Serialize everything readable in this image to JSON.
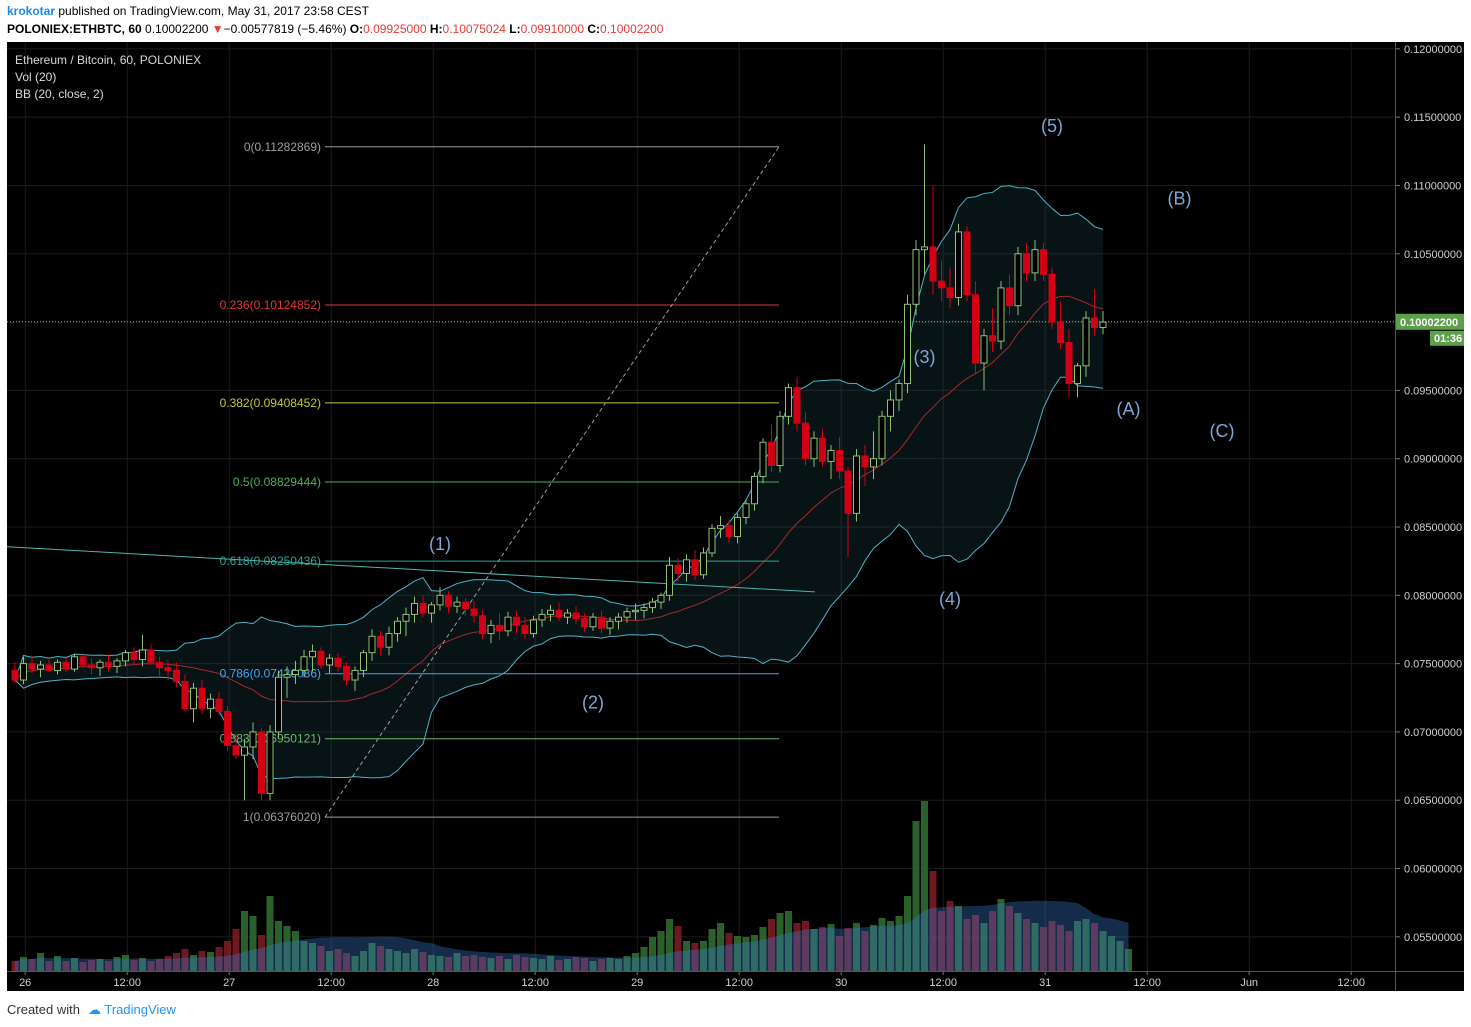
{
  "header": {
    "author": "krokotar",
    "published_text": "published on TradingView.com, May 31, 2017 23:58 CEST",
    "symbol": "POLONIEX:ETHBTC, 60",
    "last": "0.10002200",
    "change": "−0.00577819 (−5.46%)",
    "open_label": "O:",
    "open": "0.09925000",
    "high_label": "H:",
    "high": "0.10075024",
    "low_label": "L:",
    "low": "0.09910000",
    "close_label": "C:",
    "close": "0.10002200"
  },
  "legend": {
    "title": "Ethereum / Bitcoin, 60, POLONIEX",
    "vol": "Vol (20)",
    "bb": "BB (20, close, 2)"
  },
  "footer": {
    "created": "Created with",
    "brand": "TradingView"
  },
  "colors": {
    "background": "#000000",
    "up": "#8cc176",
    "down": "#d10015",
    "bb_band": "#4eb3c8",
    "bb_basis": "#a52a2a",
    "label": "#7da8d4"
  },
  "chart_data": {
    "type": "candlestick",
    "pair": "ETH/BTC",
    "price_axis": {
      "min": 0.0525,
      "max": 0.1205,
      "ticks": [
        "0.12000000",
        "0.11500000",
        "0.11000000",
        "0.10500000",
        "0.10000000",
        "0.09500000",
        "0.09000000",
        "0.08500000",
        "0.08000000",
        "0.07500000",
        "0.07000000",
        "0.06500000",
        "0.06000000",
        "0.05500000"
      ]
    },
    "current_price": {
      "label": "0.10002200",
      "value": 0.100022,
      "countdown": "01:36"
    },
    "time_axis": {
      "labels": [
        "26",
        "12:00",
        "27",
        "12:00",
        "28",
        "12:00",
        "29",
        "12:00",
        "30",
        "12:00",
        "31",
        "12:00",
        "Jun",
        "12:00"
      ]
    },
    "fibonacci": [
      {
        "label": "0(0.11282869)",
        "value": 0.11282869,
        "color": "#9e9e9e"
      },
      {
        "label": "0.236(0.10124852)",
        "value": 0.10124852,
        "color": "#e53935"
      },
      {
        "label": "0.382(0.09408452)",
        "value": 0.09408452,
        "color": "#c0ca33"
      },
      {
        "label": "0.5(0.08829444)",
        "value": 0.08829444,
        "color": "#4caf50"
      },
      {
        "label": "0.618(0.08250436)",
        "value": 0.08250436,
        "color": "#26a69a"
      },
      {
        "label": "0.786(0.07426086)",
        "value": 0.07426086,
        "color": "#42a5f5"
      },
      {
        "label": "0.883(0.06950121)",
        "value": 0.06950121,
        "color": "#66bb6a"
      },
      {
        "label": "1(0.06376020)",
        "value": 0.0637602,
        "color": "#9e9e9e"
      }
    ],
    "wave_labels": [
      {
        "text": "(1)",
        "t": 50,
        "price": 0.0833
      },
      {
        "text": "(2)",
        "t": 68,
        "price": 0.0717
      },
      {
        "text": "(3)",
        "t": 107,
        "price": 0.097
      },
      {
        "text": "(4)",
        "t": 110,
        "price": 0.0793
      },
      {
        "text": "(5)",
        "t": 122,
        "price": 0.1139
      },
      {
        "text": "(A)",
        "t": 131,
        "price": 0.0932
      },
      {
        "text": "(B)",
        "t": 137,
        "price": 0.1086
      },
      {
        "text": "(C)",
        "t": 142,
        "price": 0.0916
      }
    ],
    "candles": [
      [
        0.0745,
        0.0751,
        0.0736,
        0.0738
      ],
      [
        0.0738,
        0.0755,
        0.0735,
        0.075
      ],
      [
        0.075,
        0.0756,
        0.0743,
        0.0746
      ],
      [
        0.0746,
        0.0752,
        0.074,
        0.0749
      ],
      [
        0.0749,
        0.0753,
        0.0744,
        0.0745
      ],
      [
        0.0745,
        0.0753,
        0.0742,
        0.0751
      ],
      [
        0.0751,
        0.0754,
        0.0744,
        0.0746
      ],
      [
        0.0746,
        0.0757,
        0.0744,
        0.0755
      ],
      [
        0.0755,
        0.0758,
        0.0747,
        0.0749
      ],
      [
        0.0749,
        0.0754,
        0.0742,
        0.0747
      ],
      [
        0.0747,
        0.0753,
        0.0741,
        0.0751
      ],
      [
        0.0751,
        0.0757,
        0.0744,
        0.0748
      ],
      [
        0.0748,
        0.0754,
        0.0743,
        0.0752
      ],
      [
        0.0752,
        0.076,
        0.0748,
        0.0758
      ],
      [
        0.0758,
        0.0762,
        0.0749,
        0.0753
      ],
      [
        0.0753,
        0.0771,
        0.0748,
        0.076
      ],
      [
        0.076,
        0.0764,
        0.0749,
        0.0751
      ],
      [
        0.0751,
        0.0755,
        0.0741,
        0.0747
      ],
      [
        0.0747,
        0.0752,
        0.0738,
        0.0745
      ],
      [
        0.0745,
        0.0751,
        0.0733,
        0.0737
      ],
      [
        0.0737,
        0.0742,
        0.0715,
        0.0717
      ],
      [
        0.0717,
        0.0736,
        0.0707,
        0.0732
      ],
      [
        0.0732,
        0.0738,
        0.0713,
        0.0717
      ],
      [
        0.0717,
        0.0728,
        0.071,
        0.0724
      ],
      [
        0.0724,
        0.0729,
        0.0712,
        0.0715
      ],
      [
        0.0715,
        0.0719,
        0.0686,
        0.069
      ],
      [
        0.069,
        0.0699,
        0.068,
        0.0683
      ],
      [
        0.0683,
        0.0695,
        0.065,
        0.0689
      ],
      [
        0.0689,
        0.0707,
        0.068,
        0.07
      ],
      [
        0.07,
        0.0703,
        0.065,
        0.0655
      ],
      [
        0.0655,
        0.0705,
        0.065,
        0.07
      ],
      [
        0.07,
        0.0745,
        0.0695,
        0.074
      ],
      [
        0.074,
        0.0748,
        0.0725,
        0.0742
      ],
      [
        0.0742,
        0.0752,
        0.0735,
        0.0745
      ],
      [
        0.0745,
        0.076,
        0.074,
        0.0755
      ],
      [
        0.0755,
        0.0764,
        0.0744,
        0.0759
      ],
      [
        0.0759,
        0.0762,
        0.0746,
        0.0749
      ],
      [
        0.0749,
        0.0757,
        0.0743,
        0.0754
      ],
      [
        0.0754,
        0.0758,
        0.0744,
        0.0748
      ],
      [
        0.0748,
        0.0751,
        0.0734,
        0.0738
      ],
      [
        0.0738,
        0.0748,
        0.073,
        0.0745
      ],
      [
        0.0745,
        0.076,
        0.074,
        0.0758
      ],
      [
        0.0758,
        0.0775,
        0.0752,
        0.077
      ],
      [
        0.077,
        0.0774,
        0.0756,
        0.0762
      ],
      [
        0.0762,
        0.0777,
        0.0756,
        0.0772
      ],
      [
        0.0772,
        0.0784,
        0.0766,
        0.0781
      ],
      [
        0.0781,
        0.0791,
        0.077,
        0.0786
      ],
      [
        0.0786,
        0.0799,
        0.078,
        0.0794
      ],
      [
        0.0794,
        0.08,
        0.0784,
        0.0787
      ],
      [
        0.0787,
        0.0795,
        0.078,
        0.0793
      ],
      [
        0.0793,
        0.0806,
        0.0789,
        0.08
      ],
      [
        0.08,
        0.0803,
        0.0787,
        0.0792
      ],
      [
        0.0792,
        0.0799,
        0.0787,
        0.0795
      ],
      [
        0.0795,
        0.0798,
        0.0785,
        0.079
      ],
      [
        0.079,
        0.0796,
        0.078,
        0.0785
      ],
      [
        0.0785,
        0.0789,
        0.0768,
        0.0772
      ],
      [
        0.0772,
        0.0782,
        0.0765,
        0.0778
      ],
      [
        0.0778,
        0.0787,
        0.0767,
        0.0774
      ],
      [
        0.0774,
        0.0788,
        0.077,
        0.0784
      ],
      [
        0.0784,
        0.0789,
        0.0772,
        0.0778
      ],
      [
        0.0778,
        0.0784,
        0.0768,
        0.0772
      ],
      [
        0.0772,
        0.0785,
        0.0769,
        0.0782
      ],
      [
        0.0782,
        0.079,
        0.0777,
        0.0786
      ],
      [
        0.0786,
        0.0793,
        0.0781,
        0.0789
      ],
      [
        0.0789,
        0.0795,
        0.0781,
        0.0784
      ],
      [
        0.0784,
        0.079,
        0.0779,
        0.0787
      ],
      [
        0.0787,
        0.0792,
        0.0779,
        0.0783
      ],
      [
        0.0783,
        0.0787,
        0.0773,
        0.0777
      ],
      [
        0.0777,
        0.0787,
        0.0774,
        0.0784
      ],
      [
        0.0784,
        0.0789,
        0.0772,
        0.0776
      ],
      [
        0.0776,
        0.0784,
        0.0771,
        0.0781
      ],
      [
        0.0781,
        0.0787,
        0.0775,
        0.0784
      ],
      [
        0.0784,
        0.0791,
        0.078,
        0.0788
      ],
      [
        0.0788,
        0.0794,
        0.0782,
        0.0789
      ],
      [
        0.0789,
        0.0794,
        0.0783,
        0.0791
      ],
      [
        0.0791,
        0.0798,
        0.0787,
        0.0795
      ],
      [
        0.0795,
        0.0802,
        0.079,
        0.08
      ],
      [
        0.08,
        0.0828,
        0.0796,
        0.0822
      ],
      [
        0.0822,
        0.0827,
        0.081,
        0.0816
      ],
      [
        0.0816,
        0.083,
        0.081,
        0.0826
      ],
      [
        0.0826,
        0.0833,
        0.0811,
        0.0815
      ],
      [
        0.0815,
        0.0835,
        0.0812,
        0.0831
      ],
      [
        0.0831,
        0.0852,
        0.0828,
        0.0849
      ],
      [
        0.0849,
        0.0858,
        0.0842,
        0.0851
      ],
      [
        0.0851,
        0.0856,
        0.0838,
        0.0843
      ],
      [
        0.0843,
        0.086,
        0.0838,
        0.0857
      ],
      [
        0.0857,
        0.087,
        0.0852,
        0.0867
      ],
      [
        0.0867,
        0.089,
        0.0862,
        0.0887
      ],
      [
        0.0887,
        0.0915,
        0.0882,
        0.0912
      ],
      [
        0.0912,
        0.0925,
        0.089,
        0.0895
      ],
      [
        0.0895,
        0.0935,
        0.089,
        0.0931
      ],
      [
        0.0931,
        0.0955,
        0.0925,
        0.0952
      ],
      [
        0.0952,
        0.096,
        0.092,
        0.0926
      ],
      [
        0.0926,
        0.0934,
        0.0895,
        0.09
      ],
      [
        0.09,
        0.092,
        0.0894,
        0.0915
      ],
      [
        0.0915,
        0.0922,
        0.0894,
        0.0898
      ],
      [
        0.0898,
        0.091,
        0.0885,
        0.0906
      ],
      [
        0.0906,
        0.0916,
        0.0885,
        0.0891
      ],
      [
        0.0891,
        0.0894,
        0.0828,
        0.086
      ],
      [
        0.086,
        0.0907,
        0.0854,
        0.0902
      ],
      [
        0.0902,
        0.091,
        0.088,
        0.0894
      ],
      [
        0.0894,
        0.092,
        0.0885,
        0.09
      ],
      [
        0.09,
        0.0935,
        0.0895,
        0.0931
      ],
      [
        0.0931,
        0.095,
        0.092,
        0.0943
      ],
      [
        0.0943,
        0.0958,
        0.0935,
        0.0955
      ],
      [
        0.0955,
        0.102,
        0.0948,
        0.1013
      ],
      [
        0.1013,
        0.106,
        0.1005,
        0.1053
      ],
      [
        0.1053,
        0.113,
        0.1035,
        0.1055
      ],
      [
        0.1055,
        0.11,
        0.102,
        0.103
      ],
      [
        0.103,
        0.1045,
        0.1015,
        0.1025
      ],
      [
        0.1025,
        0.104,
        0.101,
        0.1018
      ],
      [
        0.1018,
        0.1072,
        0.1012,
        0.1066
      ],
      [
        0.1066,
        0.107,
        0.1015,
        0.102
      ],
      [
        0.102,
        0.103,
        0.0962,
        0.097
      ],
      [
        0.097,
        0.0995,
        0.095,
        0.099
      ],
      [
        0.099,
        0.101,
        0.0978,
        0.0986
      ],
      [
        0.0986,
        0.103,
        0.098,
        0.1025
      ],
      [
        0.1025,
        0.1035,
        0.1005,
        0.1012
      ],
      [
        0.1012,
        0.1055,
        0.1005,
        0.105
      ],
      [
        0.105,
        0.1058,
        0.103,
        0.1036
      ],
      [
        0.1036,
        0.106,
        0.103,
        0.1053
      ],
      [
        0.1053,
        0.1058,
        0.103,
        0.1035
      ],
      [
        0.1035,
        0.104,
        0.0995,
        0.1
      ],
      [
        0.1,
        0.1015,
        0.098,
        0.0985
      ],
      [
        0.0985,
        0.0995,
        0.0945,
        0.0955
      ],
      [
        0.0955,
        0.097,
        0.0945,
        0.0968
      ],
      [
        0.0968,
        0.1008,
        0.096,
        0.1003
      ],
      [
        0.1003,
        0.1024,
        0.099,
        0.0996
      ],
      [
        0.0996,
        0.1008,
        0.0991,
        0.1
      ]
    ],
    "volumes": [
      0.1,
      0.14,
      0.12,
      0.18,
      0.1,
      0.15,
      0.1,
      0.13,
      0.09,
      0.11,
      0.12,
      0.1,
      0.14,
      0.16,
      0.11,
      0.13,
      0.1,
      0.12,
      0.15,
      0.18,
      0.22,
      0.16,
      0.2,
      0.19,
      0.24,
      0.3,
      0.42,
      0.6,
      0.55,
      0.36,
      0.75,
      0.5,
      0.45,
      0.4,
      0.3,
      0.28,
      0.25,
      0.2,
      0.22,
      0.18,
      0.15,
      0.2,
      0.28,
      0.25,
      0.22,
      0.2,
      0.18,
      0.22,
      0.19,
      0.16,
      0.15,
      0.14,
      0.18,
      0.15,
      0.16,
      0.14,
      0.13,
      0.15,
      0.12,
      0.16,
      0.14,
      0.13,
      0.12,
      0.15,
      0.11,
      0.12,
      0.14,
      0.13,
      0.1,
      0.12,
      0.13,
      0.12,
      0.15,
      0.18,
      0.24,
      0.34,
      0.4,
      0.52,
      0.45,
      0.3,
      0.28,
      0.3,
      0.42,
      0.48,
      0.38,
      0.35,
      0.34,
      0.36,
      0.44,
      0.52,
      0.58,
      0.6,
      0.48,
      0.5,
      0.42,
      0.44,
      0.47,
      0.35,
      0.43,
      0.48,
      0.4,
      0.46,
      0.53,
      0.5,
      0.55,
      0.75,
      1.5,
      1.7,
      1.0,
      0.6,
      0.7,
      0.65,
      0.52,
      0.56,
      0.48,
      0.6,
      0.72,
      0.65,
      0.58,
      0.52,
      0.48,
      0.44,
      0.5,
      0.46,
      0.4,
      0.5,
      0.52,
      0.48,
      0.4,
      0.35,
      0.3,
      0.22
    ]
  }
}
